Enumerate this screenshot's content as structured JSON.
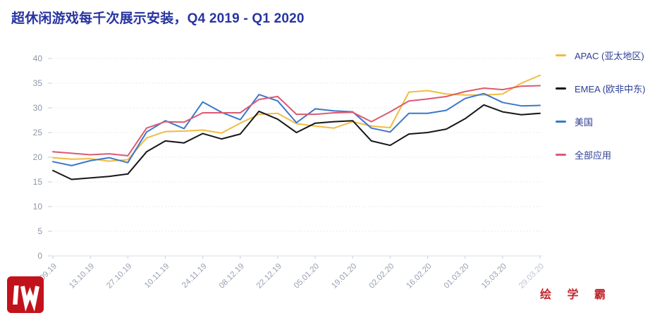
{
  "title": "超休闲游戏每千次展示安装，Q4 2019 - Q1 2020",
  "watermark": {
    "brand_text": "绘 学 霸",
    "logo_letter": "W"
  },
  "colors": {
    "title_text": "#2734A0",
    "legend_text": "#2C3F94",
    "tick_label": "#98A0B2",
    "tick_label_faded": "#BDC4D0",
    "axis_line": "#D9DDE5",
    "grid_line": "#E2E5EC",
    "tick_mark": "#C9CED8",
    "logo_red": "#C2121B",
    "brand_red": "#C0272D",
    "series_apac": "#F0BD41",
    "series_emea": "#17171B",
    "series_us": "#3A78CC",
    "series_all": "#DC5A72"
  },
  "chart_data": {
    "type": "line",
    "title": "超休闲游戏每千次展示安装，Q4 2019 - Q1 2020",
    "x_tick_labels": [
      "29.09.19",
      "13.10.19",
      "27.10.19",
      "10.11.19",
      "24.11.19",
      "08.12.19",
      "22.12.19",
      "05.01.20",
      "19.01.20",
      "02.02.20",
      "16.02.20",
      "01.03.20",
      "15.03.20",
      "29.03.20"
    ],
    "points_per_tick": 2,
    "point_frequency": "weekly",
    "ylim": [
      0,
      40
    ],
    "ytick_step": 5,
    "grid": "dotted-horizontal",
    "legend_position": "right",
    "series": [
      {
        "name": "APAC (亚太地区)",
        "color": "#F0BD41",
        "values": [
          19.9,
          19.6,
          19.7,
          19.2,
          19.5,
          23.9,
          25.2,
          25.3,
          25.5,
          24.9,
          26.9,
          28.7,
          28.9,
          26.8,
          26.3,
          25.9,
          27.2,
          26.3,
          26.0,
          33.2,
          33.5,
          32.8,
          32.6,
          32.6,
          32.8,
          35.0,
          36.6
        ]
      },
      {
        "name": "EMEA (欧非中东)",
        "color": "#17171B",
        "values": [
          17.3,
          15.5,
          15.8,
          16.1,
          16.6,
          21.1,
          23.3,
          22.9,
          24.8,
          23.7,
          24.7,
          29.3,
          27.7,
          25.0,
          26.9,
          27.2,
          27.4,
          23.3,
          22.4,
          24.7,
          25.0,
          25.7,
          27.8,
          30.6,
          29.2,
          28.6,
          28.9
        ]
      },
      {
        "name": "美国",
        "color": "#3A78CC",
        "values": [
          19.1,
          18.3,
          19.3,
          19.9,
          18.9,
          25.1,
          27.4,
          25.8,
          31.2,
          29.1,
          27.6,
          32.7,
          31.4,
          27.0,
          29.8,
          29.4,
          29.2,
          25.9,
          25.1,
          28.9,
          28.9,
          29.5,
          31.9,
          32.9,
          31.1,
          30.4,
          30.5
        ]
      },
      {
        "name": "全部应用",
        "color": "#DC5A72",
        "values": [
          21.1,
          20.8,
          20.5,
          20.7,
          20.3,
          25.9,
          27.2,
          27.1,
          29.0,
          29.0,
          29.0,
          31.7,
          32.3,
          28.7,
          28.7,
          29.0,
          29.1,
          27.2,
          29.2,
          31.4,
          31.8,
          32.3,
          33.3,
          34.0,
          33.7,
          34.4,
          34.5
        ]
      }
    ]
  }
}
